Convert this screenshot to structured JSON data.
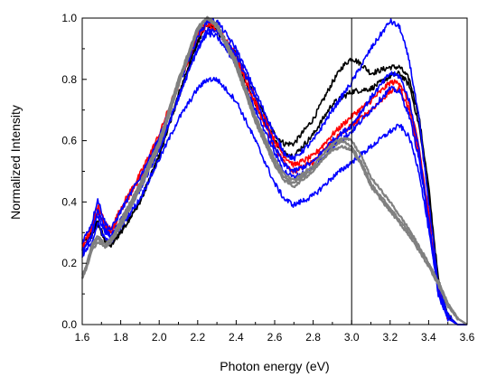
{
  "chart_data": {
    "type": "line",
    "title": "",
    "xlabel": "Photon energy (eV)",
    "ylabel": "Normalized Intensity",
    "xlim": [
      1.6,
      3.6
    ],
    "ylim": [
      0.0,
      1.0
    ],
    "xticks": [
      1.6,
      1.8,
      2.0,
      2.2,
      2.4,
      2.6,
      2.8,
      3.0,
      3.2,
      3.4,
      3.6
    ],
    "xtick_labels": [
      "1.6",
      "1.8",
      "2.0",
      "2.2",
      "2.4",
      "2.6",
      "2.8",
      "3.0",
      "3.2",
      "3.4",
      "3.6"
    ],
    "yticks": [
      0.0,
      0.2,
      0.4,
      0.6,
      0.8,
      1.0
    ],
    "ytick_labels": [
      "0.0",
      "0.2",
      "0.4",
      "0.6",
      "0.8",
      "1.0"
    ],
    "grid": false,
    "legend": "none",
    "reference_line": {
      "x": 3.0
    },
    "series": [
      {
        "color": "#000000",
        "x": [
          1.6,
          1.65,
          1.68,
          1.72,
          1.75,
          1.8,
          1.9,
          2.0,
          2.1,
          2.2,
          2.25,
          2.3,
          2.4,
          2.5,
          2.6,
          2.65,
          2.7,
          2.8,
          2.9,
          2.95,
          3.0,
          3.05,
          3.1,
          3.2,
          3.25,
          3.3,
          3.35,
          3.4,
          3.45,
          3.5,
          3.55,
          3.6
        ],
        "y": [
          0.26,
          0.3,
          0.34,
          0.27,
          0.26,
          0.3,
          0.4,
          0.55,
          0.75,
          0.93,
          0.99,
          0.97,
          0.88,
          0.74,
          0.62,
          0.59,
          0.59,
          0.67,
          0.79,
          0.84,
          0.87,
          0.85,
          0.82,
          0.84,
          0.84,
          0.8,
          0.68,
          0.45,
          0.15,
          0.03,
          0.0,
          0.0
        ]
      },
      {
        "color": "#000000",
        "x": [
          1.6,
          1.65,
          1.68,
          1.72,
          1.75,
          1.8,
          1.9,
          2.0,
          2.1,
          2.2,
          2.25,
          2.3,
          2.4,
          2.5,
          2.6,
          2.65,
          2.7,
          2.8,
          2.9,
          3.0,
          3.1,
          3.2,
          3.25,
          3.3,
          3.35,
          3.4,
          3.45,
          3.5,
          3.55,
          3.6
        ],
        "y": [
          0.25,
          0.29,
          0.33,
          0.27,
          0.26,
          0.3,
          0.4,
          0.55,
          0.74,
          0.92,
          0.98,
          0.96,
          0.86,
          0.72,
          0.6,
          0.56,
          0.55,
          0.62,
          0.72,
          0.76,
          0.77,
          0.81,
          0.82,
          0.78,
          0.65,
          0.42,
          0.14,
          0.03,
          0.0,
          0.0
        ]
      },
      {
        "color": "#ff0000",
        "x": [
          1.6,
          1.65,
          1.68,
          1.72,
          1.75,
          1.8,
          1.9,
          2.0,
          2.1,
          2.2,
          2.25,
          2.3,
          2.4,
          2.5,
          2.6,
          2.65,
          2.7,
          2.8,
          2.9,
          3.0,
          3.1,
          3.2,
          3.25,
          3.3,
          3.35,
          3.4,
          3.45,
          3.5,
          3.55,
          3.6
        ],
        "y": [
          0.26,
          0.32,
          0.39,
          0.33,
          0.31,
          0.38,
          0.49,
          0.62,
          0.79,
          0.95,
          0.99,
          0.97,
          0.88,
          0.74,
          0.6,
          0.55,
          0.52,
          0.55,
          0.62,
          0.68,
          0.73,
          0.79,
          0.79,
          0.72,
          0.58,
          0.36,
          0.12,
          0.02,
          0.0,
          0.0
        ]
      },
      {
        "color": "#ff0000",
        "x": [
          1.6,
          1.65,
          1.68,
          1.72,
          1.75,
          1.8,
          1.9,
          2.0,
          2.1,
          2.2,
          2.25,
          2.3,
          2.4,
          2.5,
          2.6,
          2.65,
          2.7,
          2.8,
          2.9,
          3.0,
          3.1,
          3.2,
          3.25,
          3.3,
          3.35,
          3.4,
          3.45,
          3.5,
          3.55,
          3.6
        ],
        "y": [
          0.25,
          0.31,
          0.37,
          0.32,
          0.3,
          0.37,
          0.48,
          0.61,
          0.78,
          0.94,
          0.98,
          0.96,
          0.87,
          0.72,
          0.58,
          0.53,
          0.5,
          0.53,
          0.6,
          0.65,
          0.7,
          0.76,
          0.77,
          0.7,
          0.56,
          0.34,
          0.11,
          0.02,
          0.0,
          0.0
        ]
      },
      {
        "color": "#0000ff",
        "x": [
          1.6,
          1.65,
          1.68,
          1.72,
          1.75,
          1.8,
          1.9,
          2.0,
          2.1,
          2.2,
          2.25,
          2.3,
          2.4,
          2.5,
          2.6,
          2.65,
          2.7,
          2.8,
          2.9,
          3.0,
          3.1,
          3.2,
          3.25,
          3.3,
          3.35,
          3.4,
          3.45,
          3.5,
          3.55,
          3.6
        ],
        "y": [
          0.27,
          0.33,
          0.41,
          0.33,
          0.31,
          0.37,
          0.48,
          0.61,
          0.78,
          0.94,
          0.99,
          0.99,
          0.9,
          0.76,
          0.62,
          0.56,
          0.54,
          0.6,
          0.7,
          0.79,
          0.9,
          0.99,
          0.97,
          0.86,
          0.67,
          0.4,
          0.13,
          0.03,
          0.0,
          0.0
        ]
      },
      {
        "color": "#0000ff",
        "x": [
          1.6,
          1.65,
          1.68,
          1.72,
          1.75,
          1.8,
          1.9,
          2.0,
          2.1,
          2.2,
          2.25,
          2.3,
          2.4,
          2.5,
          2.6,
          2.65,
          2.7,
          2.8,
          2.9,
          3.0,
          3.1,
          3.2,
          3.25,
          3.3,
          3.35,
          3.4,
          3.45,
          3.5,
          3.55,
          3.6
        ],
        "y": [
          0.24,
          0.3,
          0.37,
          0.31,
          0.29,
          0.34,
          0.44,
          0.57,
          0.74,
          0.9,
          0.96,
          0.96,
          0.88,
          0.74,
          0.58,
          0.52,
          0.5,
          0.53,
          0.6,
          0.65,
          0.74,
          0.82,
          0.81,
          0.73,
          0.57,
          0.34,
          0.11,
          0.02,
          0.0,
          0.0
        ]
      },
      {
        "color": "#0000ff",
        "x": [
          1.6,
          1.65,
          1.68,
          1.72,
          1.75,
          1.8,
          1.9,
          2.0,
          2.1,
          2.2,
          2.25,
          2.3,
          2.4,
          2.5,
          2.6,
          2.65,
          2.7,
          2.8,
          2.9,
          3.0,
          3.1,
          3.2,
          3.25,
          3.3,
          3.35,
          3.4,
          3.45,
          3.5,
          3.55,
          3.6
        ],
        "y": [
          0.22,
          0.27,
          0.33,
          0.28,
          0.27,
          0.32,
          0.41,
          0.54,
          0.67,
          0.77,
          0.8,
          0.8,
          0.73,
          0.6,
          0.46,
          0.41,
          0.39,
          0.42,
          0.48,
          0.53,
          0.58,
          0.63,
          0.65,
          0.61,
          0.5,
          0.31,
          0.1,
          0.02,
          0.0,
          0.0
        ]
      },
      {
        "color": "#0000ff",
        "x": [
          1.6,
          1.65,
          1.68,
          1.72,
          1.75,
          1.8,
          1.9,
          2.0,
          2.1,
          2.2,
          2.25,
          2.3,
          2.4,
          2.5,
          2.6,
          2.65,
          2.7,
          2.8,
          2.9,
          3.0,
          3.1,
          3.2,
          3.25,
          3.3,
          3.35,
          3.4,
          3.45,
          3.5,
          3.55,
          3.6
        ],
        "y": [
          0.23,
          0.29,
          0.36,
          0.3,
          0.28,
          0.34,
          0.44,
          0.57,
          0.74,
          0.9,
          0.95,
          0.94,
          0.85,
          0.7,
          0.56,
          0.5,
          0.48,
          0.51,
          0.58,
          0.63,
          0.7,
          0.77,
          0.76,
          0.68,
          0.54,
          0.33,
          0.1,
          0.02,
          0.0,
          0.0
        ]
      },
      {
        "color": "#808080",
        "x": [
          1.6,
          1.62,
          1.65,
          1.68,
          1.72,
          1.75,
          1.8,
          1.9,
          2.0,
          2.1,
          2.2,
          2.25,
          2.3,
          2.4,
          2.5,
          2.6,
          2.65,
          2.7,
          2.8,
          2.9,
          2.95,
          3.0,
          3.05,
          3.1,
          3.2,
          3.3,
          3.4,
          3.45,
          3.5,
          3.55,
          3.6
        ],
        "y": [
          0.15,
          0.18,
          0.24,
          0.27,
          0.25,
          0.27,
          0.32,
          0.44,
          0.58,
          0.78,
          0.96,
          1.0,
          0.97,
          0.84,
          0.66,
          0.52,
          0.47,
          0.45,
          0.5,
          0.58,
          0.6,
          0.58,
          0.53,
          0.46,
          0.38,
          0.3,
          0.2,
          0.14,
          0.07,
          0.02,
          0.0
        ]
      },
      {
        "color": "#808080",
        "x": [
          1.6,
          1.62,
          1.65,
          1.68,
          1.72,
          1.75,
          1.8,
          1.9,
          2.0,
          2.1,
          2.2,
          2.25,
          2.3,
          2.4,
          2.5,
          2.6,
          2.65,
          2.7,
          2.8,
          2.9,
          2.95,
          3.0,
          3.05,
          3.1,
          3.2,
          3.3,
          3.4,
          3.45,
          3.5,
          3.55,
          3.6
        ],
        "y": [
          0.16,
          0.19,
          0.25,
          0.28,
          0.26,
          0.28,
          0.33,
          0.45,
          0.59,
          0.79,
          0.97,
          1.0,
          0.98,
          0.85,
          0.67,
          0.53,
          0.48,
          0.46,
          0.51,
          0.57,
          0.58,
          0.57,
          0.52,
          0.45,
          0.37,
          0.29,
          0.19,
          0.13,
          0.06,
          0.02,
          0.0
        ]
      },
      {
        "color": "#808080",
        "x": [
          1.6,
          1.62,
          1.65,
          1.68,
          1.72,
          1.75,
          1.8,
          1.9,
          2.0,
          2.1,
          2.2,
          2.25,
          2.3,
          2.4,
          2.5,
          2.6,
          2.65,
          2.7,
          2.8,
          2.9,
          2.95,
          3.0,
          3.05,
          3.1,
          3.2,
          3.3,
          3.4,
          3.45,
          3.5,
          3.55,
          3.6
        ],
        "y": [
          0.15,
          0.19,
          0.26,
          0.29,
          0.26,
          0.28,
          0.34,
          0.46,
          0.6,
          0.8,
          0.97,
          1.0,
          0.98,
          0.86,
          0.68,
          0.54,
          0.49,
          0.47,
          0.52,
          0.59,
          0.61,
          0.6,
          0.55,
          0.48,
          0.4,
          0.31,
          0.2,
          0.14,
          0.07,
          0.02,
          0.0
        ]
      }
    ]
  }
}
